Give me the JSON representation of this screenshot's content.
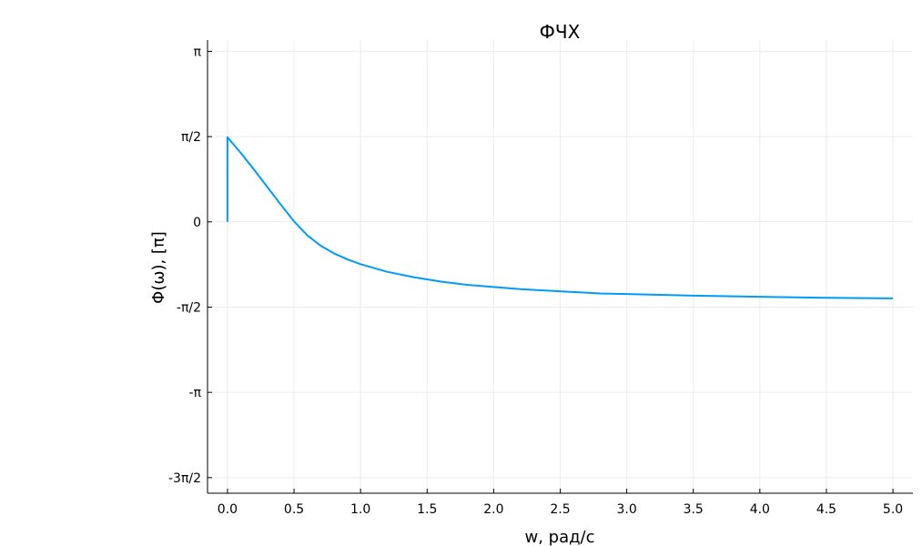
{
  "chart_data": {
    "type": "line",
    "title": "ФЧХ",
    "xlabel": "w, рад/с",
    "ylabel": "Φ(ω), [π]",
    "xlim": [
      -0.15,
      5.15
    ],
    "ylim": [
      -5.0,
      3.35
    ],
    "grid": true,
    "legend": "none",
    "x_ticks": [
      {
        "value": 0.0,
        "label": "0.0"
      },
      {
        "value": 0.5,
        "label": "0.5"
      },
      {
        "value": 1.0,
        "label": "1.0"
      },
      {
        "value": 1.5,
        "label": "1.5"
      },
      {
        "value": 2.0,
        "label": "2.0"
      },
      {
        "value": 2.5,
        "label": "2.5"
      },
      {
        "value": 3.0,
        "label": "3.0"
      },
      {
        "value": 3.5,
        "label": "3.5"
      },
      {
        "value": 4.0,
        "label": "4.0"
      },
      {
        "value": 4.5,
        "label": "4.5"
      },
      {
        "value": 5.0,
        "label": "5.0"
      }
    ],
    "y_ticks": [
      {
        "value": 3.1416,
        "label": "π"
      },
      {
        "value": 1.5708,
        "label": "π/2"
      },
      {
        "value": 0,
        "label": "0"
      },
      {
        "value": -1.5708,
        "label": "-π/2"
      },
      {
        "value": -3.1416,
        "label": "-π"
      },
      {
        "value": -4.7124,
        "label": "-3π/2"
      }
    ],
    "series": [
      {
        "color": "#009af9",
        "x": [
          0.0,
          0.0,
          0.1,
          0.2,
          0.3,
          0.4,
          0.5,
          0.6,
          0.7,
          0.8,
          0.9,
          1.0,
          1.2,
          1.4,
          1.6,
          1.8,
          2.0,
          2.2,
          2.5,
          2.8,
          3.0,
          3.5,
          4.0,
          4.5,
          5.0
        ],
        "y": [
          0.0,
          1.56,
          1.27,
          0.96,
          0.64,
          0.32,
          0.01,
          -0.25,
          -0.44,
          -0.58,
          -0.69,
          -0.78,
          -0.92,
          -1.02,
          -1.1,
          -1.16,
          -1.2,
          -1.24,
          -1.28,
          -1.32,
          -1.33,
          -1.36,
          -1.38,
          -1.4,
          -1.41
        ]
      }
    ]
  }
}
